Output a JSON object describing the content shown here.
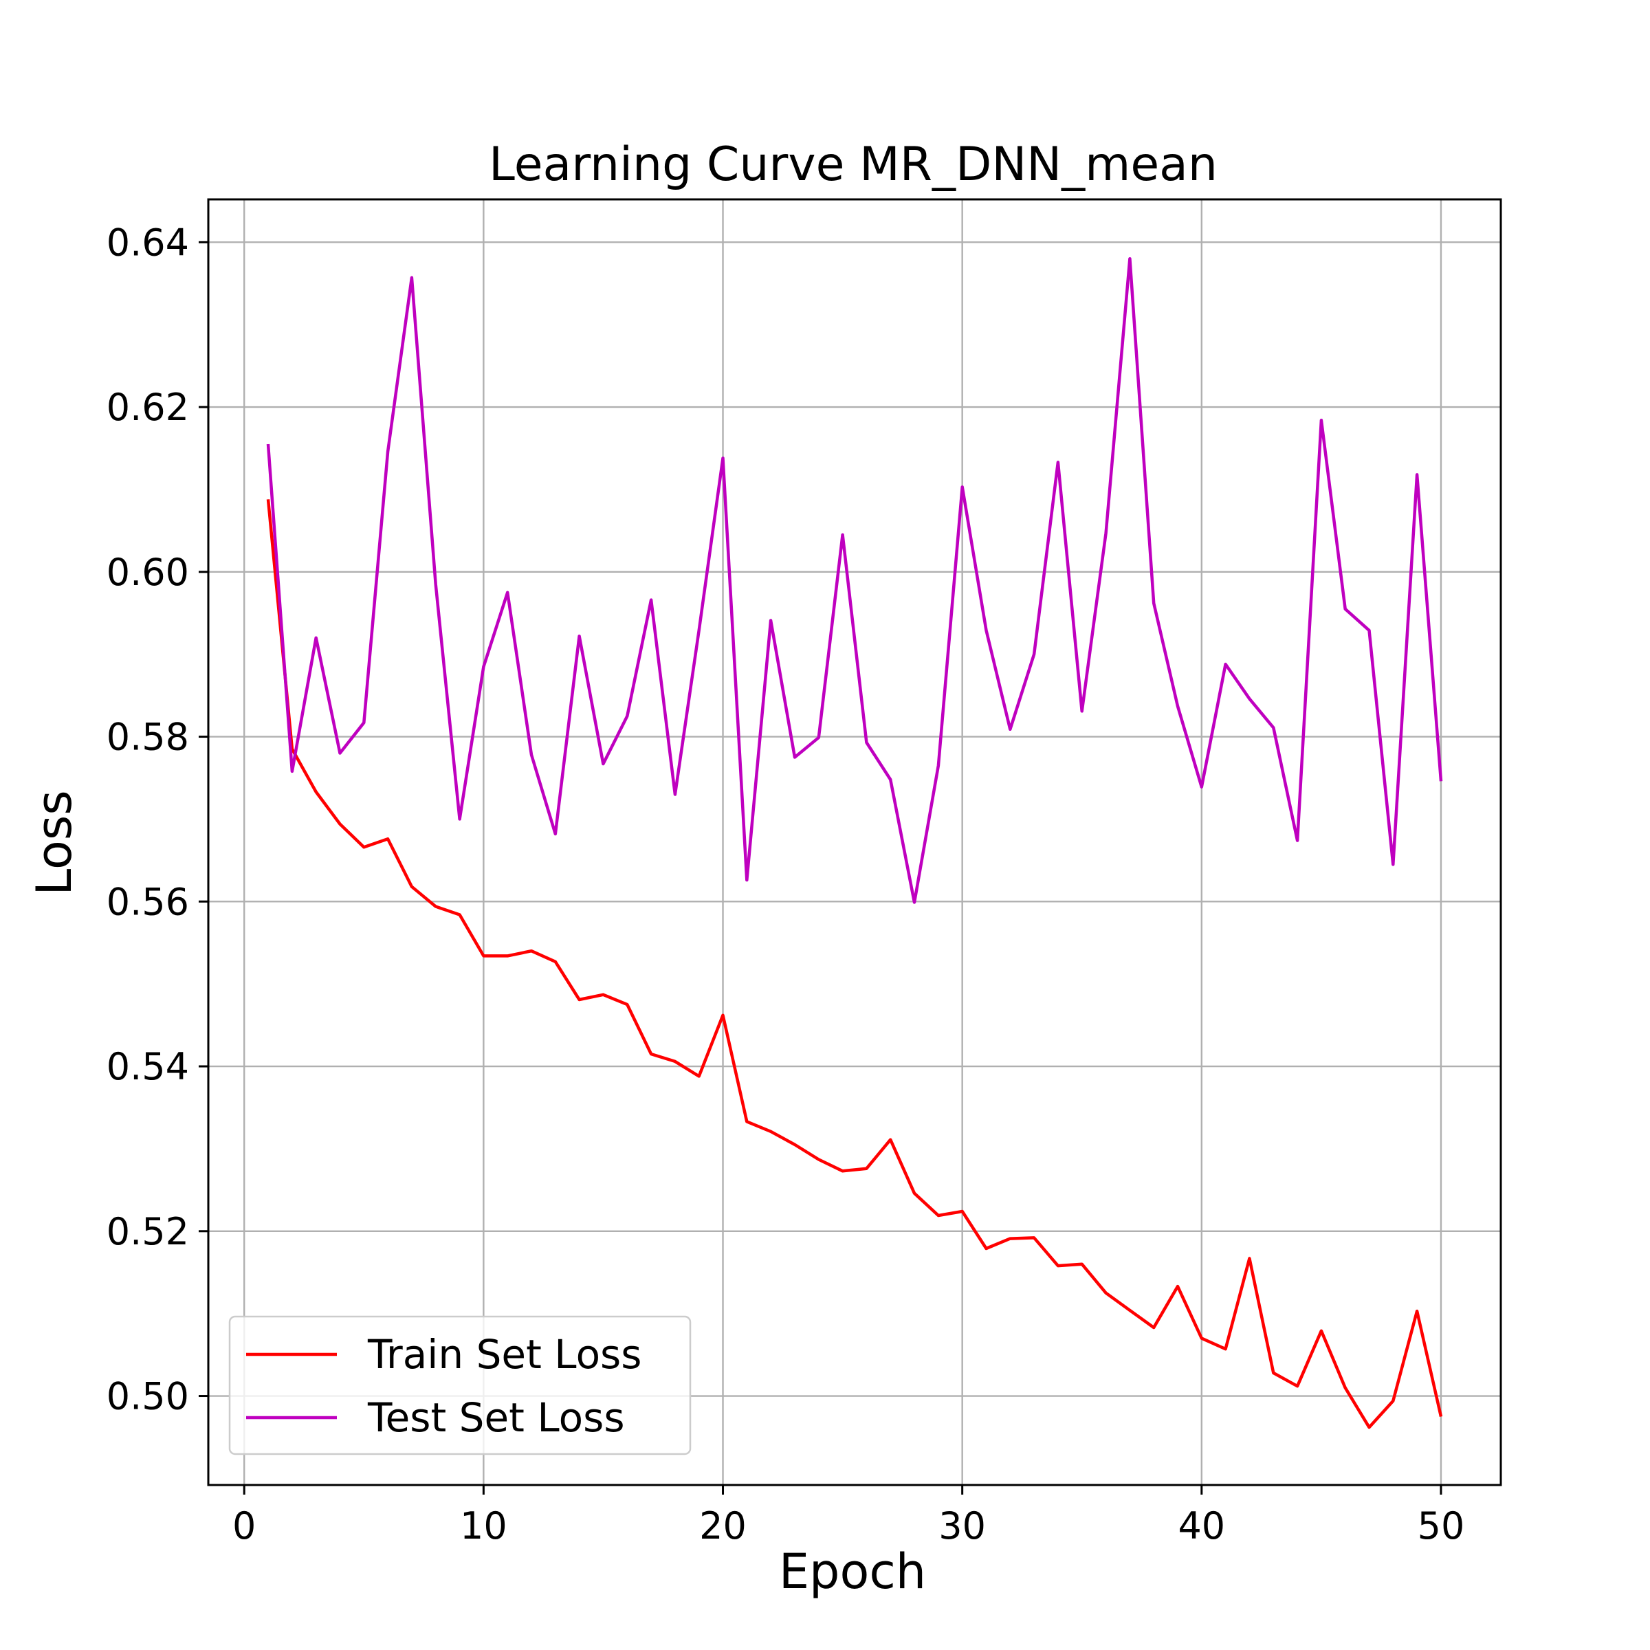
{
  "chart_data": {
    "type": "line",
    "title": "Learning Curve MR_DNN_mean",
    "xlabel": "Epoch",
    "ylabel": "Loss",
    "xlim": [
      -1.5,
      52.5
    ],
    "ylim": [
      0.4892,
      0.6452
    ],
    "grid": true,
    "legend_position": "lower-left",
    "xticks": [
      0,
      10,
      20,
      30,
      40,
      50
    ],
    "xtick_labels": [
      "0",
      "10",
      "20",
      "30",
      "40",
      "50"
    ],
    "yticks": [
      0.5,
      0.52,
      0.54,
      0.56,
      0.58,
      0.6,
      0.62,
      0.64
    ],
    "ytick_labels": [
      "0.50",
      "0.52",
      "0.54",
      "0.56",
      "0.58",
      "0.60",
      "0.62",
      "0.64"
    ],
    "x": [
      1,
      2,
      3,
      4,
      5,
      6,
      7,
      8,
      9,
      10,
      11,
      12,
      13,
      14,
      15,
      16,
      17,
      18,
      19,
      20,
      21,
      22,
      23,
      24,
      25,
      26,
      27,
      28,
      29,
      30,
      31,
      32,
      33,
      34,
      35,
      36,
      37,
      38,
      39,
      40,
      41,
      42,
      43,
      44,
      45,
      46,
      47,
      48,
      49,
      50
    ],
    "series": [
      {
        "name": "Train Set Loss",
        "color": "#ff0000",
        "values": [
          0.6088,
          0.5785,
          0.5733,
          0.5694,
          0.5666,
          0.5676,
          0.5618,
          0.5594,
          0.5584,
          0.5534,
          0.5534,
          0.554,
          0.5527,
          0.5481,
          0.5487,
          0.5475,
          0.5415,
          0.5406,
          0.5388,
          0.5462,
          0.5333,
          0.5321,
          0.5305,
          0.5287,
          0.5273,
          0.5276,
          0.5311,
          0.5246,
          0.5219,
          0.5224,
          0.5179,
          0.5191,
          0.5192,
          0.5158,
          0.516,
          0.5125,
          0.5104,
          0.5083,
          0.5133,
          0.507,
          0.5057,
          0.5167,
          0.5028,
          0.5012,
          0.5079,
          0.501,
          0.4962,
          0.4994,
          0.5103,
          0.4975
        ]
      },
      {
        "name": "Test Set Loss",
        "color": "#bf00bf",
        "values": [
          0.6155,
          0.5758,
          0.592,
          0.578,
          0.5817,
          0.6146,
          0.6357,
          0.5985,
          0.57,
          0.5885,
          0.5975,
          0.5778,
          0.5682,
          0.5922,
          0.5767,
          0.5825,
          0.5966,
          0.573,
          0.5929,
          0.6138,
          0.5626,
          0.5941,
          0.5775,
          0.5799,
          0.6045,
          0.5793,
          0.5748,
          0.5599,
          0.5765,
          0.6103,
          0.5929,
          0.5809,
          0.59,
          0.6133,
          0.5831,
          0.6047,
          0.638,
          0.5962,
          0.5837,
          0.5739,
          0.5888,
          0.5846,
          0.5811,
          0.5674,
          0.6184,
          0.5955,
          0.5929,
          0.5645,
          0.6118,
          0.5746
        ]
      }
    ]
  }
}
